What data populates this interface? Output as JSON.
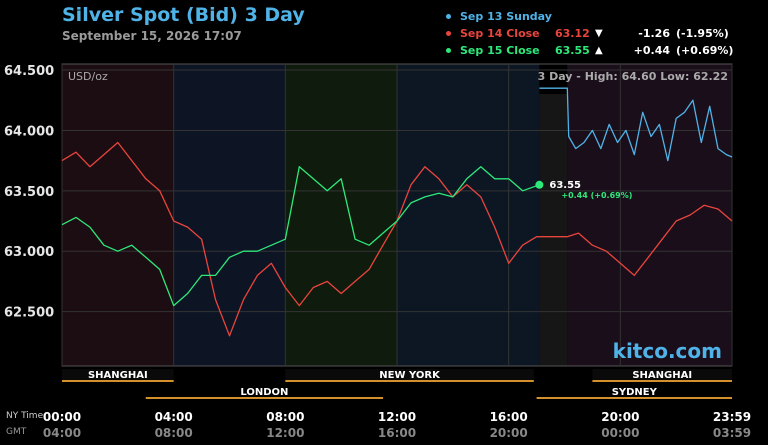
{
  "header": {
    "title": "Silver Spot (Bid) 3 Day",
    "timestamp": "September 15, 2026 17:07"
  },
  "legend": [
    {
      "label": "Sep 13 Sunday",
      "price": "",
      "arrow": "",
      "change": "",
      "percent": "",
      "color": "#4fb3e8"
    },
    {
      "label": "Sep 14 Close",
      "price": "63.12",
      "arrow": "▼",
      "change": "-1.26",
      "percent": "(-1.95%)",
      "color": "#e8453c"
    },
    {
      "label": "Sep 15 Close",
      "price": "63.55",
      "arrow": "▲",
      "change": "+0.44",
      "percent": "(+0.69%)",
      "color": "#2ee87a"
    }
  ],
  "colors": {
    "blue": "#4fb3e8",
    "red": "#e8453c",
    "green": "#2ee87a",
    "session_bar": "#d4902a",
    "background": "#000000",
    "watermark": "#4fb3e8"
  },
  "chart_data": {
    "type": "line",
    "unit_label": "USD/oz",
    "range_text": "3 Day - High: 64.60  Low: 62.22",
    "ylim": [
      62.05,
      64.55
    ],
    "yticks": [
      {
        "value": 62.5,
        "label": "62.500"
      },
      {
        "value": 63.0,
        "label": "63.000"
      },
      {
        "value": 63.5,
        "label": "63.500"
      },
      {
        "value": 64.0,
        "label": "64.000"
      },
      {
        "value": 64.5,
        "label": "64.500"
      }
    ],
    "xlim_hours": [
      0,
      24
    ],
    "xticks": [
      {
        "hour": 0,
        "ny": "00:00",
        "gmt": "04:00"
      },
      {
        "hour": 4,
        "ny": "04:00",
        "gmt": "08:00"
      },
      {
        "hour": 8,
        "ny": "08:00",
        "gmt": "12:00"
      },
      {
        "hour": 12,
        "ny": "12:00",
        "gmt": "16:00"
      },
      {
        "hour": 16,
        "ny": "16:00",
        "gmt": "20:00"
      },
      {
        "hour": 20,
        "ny": "20:00",
        "gmt": "00:00"
      },
      {
        "hour": 24,
        "ny": "23:59",
        "gmt": "03:59"
      }
    ],
    "axis_row_labels": {
      "ny": "NY Time",
      "gmt": "GMT"
    },
    "sessions": [
      {
        "name": "SHANGHAI",
        "start": 0,
        "end": 4,
        "row": 1
      },
      {
        "name": "NEW YORK",
        "start": 8,
        "end": 16.9,
        "row": 1
      },
      {
        "name": "SHANGHAI",
        "start": 19,
        "end": 24,
        "row": 1
      },
      {
        "name": "LONDON",
        "start": 3,
        "end": 11.5,
        "row": 2
      },
      {
        "name": "SYDNEY",
        "start": 17,
        "end": 24,
        "row": 2
      }
    ],
    "last_point": {
      "price": "63.55",
      "change": "+0.44 (+0.69%)",
      "hour": 17.1,
      "value": 63.55
    },
    "watermark": "kitco.com",
    "series": [
      {
        "name": "Sep 13 Sunday",
        "color": "#4fb3e8",
        "x": [
          17.1,
          18.1,
          18.15,
          18.4,
          18.7,
          19.0,
          19.3,
          19.6,
          19.9,
          20.2,
          20.5,
          20.8,
          21.1,
          21.4,
          21.7,
          22.0,
          22.3,
          22.6,
          22.9,
          23.2,
          23.5,
          23.8,
          24.0
        ],
        "y": [
          64.35,
          64.35,
          63.95,
          63.85,
          63.9,
          64.0,
          63.85,
          64.05,
          63.9,
          64.0,
          63.8,
          64.15,
          63.95,
          64.05,
          63.75,
          64.1,
          64.15,
          64.25,
          63.9,
          64.2,
          63.85,
          63.8,
          63.78
        ]
      },
      {
        "name": "Sep 14 Close",
        "color": "#e8453c",
        "x": [
          0,
          0.5,
          1.0,
          1.5,
          2.0,
          2.5,
          3.0,
          3.5,
          4.0,
          4.5,
          5.0,
          5.5,
          6.0,
          6.5,
          7.0,
          7.5,
          8.0,
          8.5,
          9.0,
          9.5,
          10.0,
          10.5,
          11.0,
          11.5,
          12.0,
          12.5,
          13.0,
          13.5,
          14.0,
          14.5,
          15.0,
          15.5,
          16.0,
          16.5,
          17.0,
          17.1,
          18.1,
          18.5,
          19.0,
          19.5,
          20.0,
          20.5,
          21.0,
          21.5,
          22.0,
          22.5,
          23.0,
          23.5,
          24.0
        ],
        "y": [
          63.75,
          63.82,
          63.7,
          63.8,
          63.9,
          63.75,
          63.6,
          63.5,
          63.25,
          63.2,
          63.1,
          62.6,
          62.3,
          62.6,
          62.8,
          62.9,
          62.7,
          62.55,
          62.7,
          62.75,
          62.65,
          62.75,
          62.85,
          63.05,
          63.25,
          63.55,
          63.7,
          63.6,
          63.45,
          63.55,
          63.45,
          63.2,
          62.9,
          63.05,
          63.12,
          63.12,
          63.12,
          63.15,
          63.05,
          63.0,
          62.9,
          62.8,
          62.95,
          63.1,
          63.25,
          63.3,
          63.38,
          63.35,
          63.25
        ]
      },
      {
        "name": "Sep 15 Close",
        "color": "#2ee87a",
        "x": [
          0,
          0.5,
          1.0,
          1.5,
          2.0,
          2.5,
          3.0,
          3.5,
          4.0,
          4.5,
          5.0,
          5.5,
          6.0,
          6.5,
          7.0,
          7.5,
          8.0,
          8.5,
          9.0,
          9.5,
          10.0,
          10.5,
          11.0,
          11.5,
          12.0,
          12.5,
          13.0,
          13.5,
          14.0,
          14.5,
          15.0,
          15.5,
          16.0,
          16.5,
          17.1
        ],
        "y": [
          63.22,
          63.28,
          63.2,
          63.05,
          63.0,
          63.05,
          62.95,
          62.85,
          62.55,
          62.65,
          62.8,
          62.8,
          62.95,
          63.0,
          63.0,
          63.05,
          63.1,
          63.7,
          63.6,
          63.5,
          63.6,
          63.1,
          63.05,
          63.15,
          63.25,
          63.4,
          63.45,
          63.48,
          63.45,
          63.6,
          63.7,
          63.6,
          63.6,
          63.5,
          63.55
        ]
      }
    ]
  }
}
